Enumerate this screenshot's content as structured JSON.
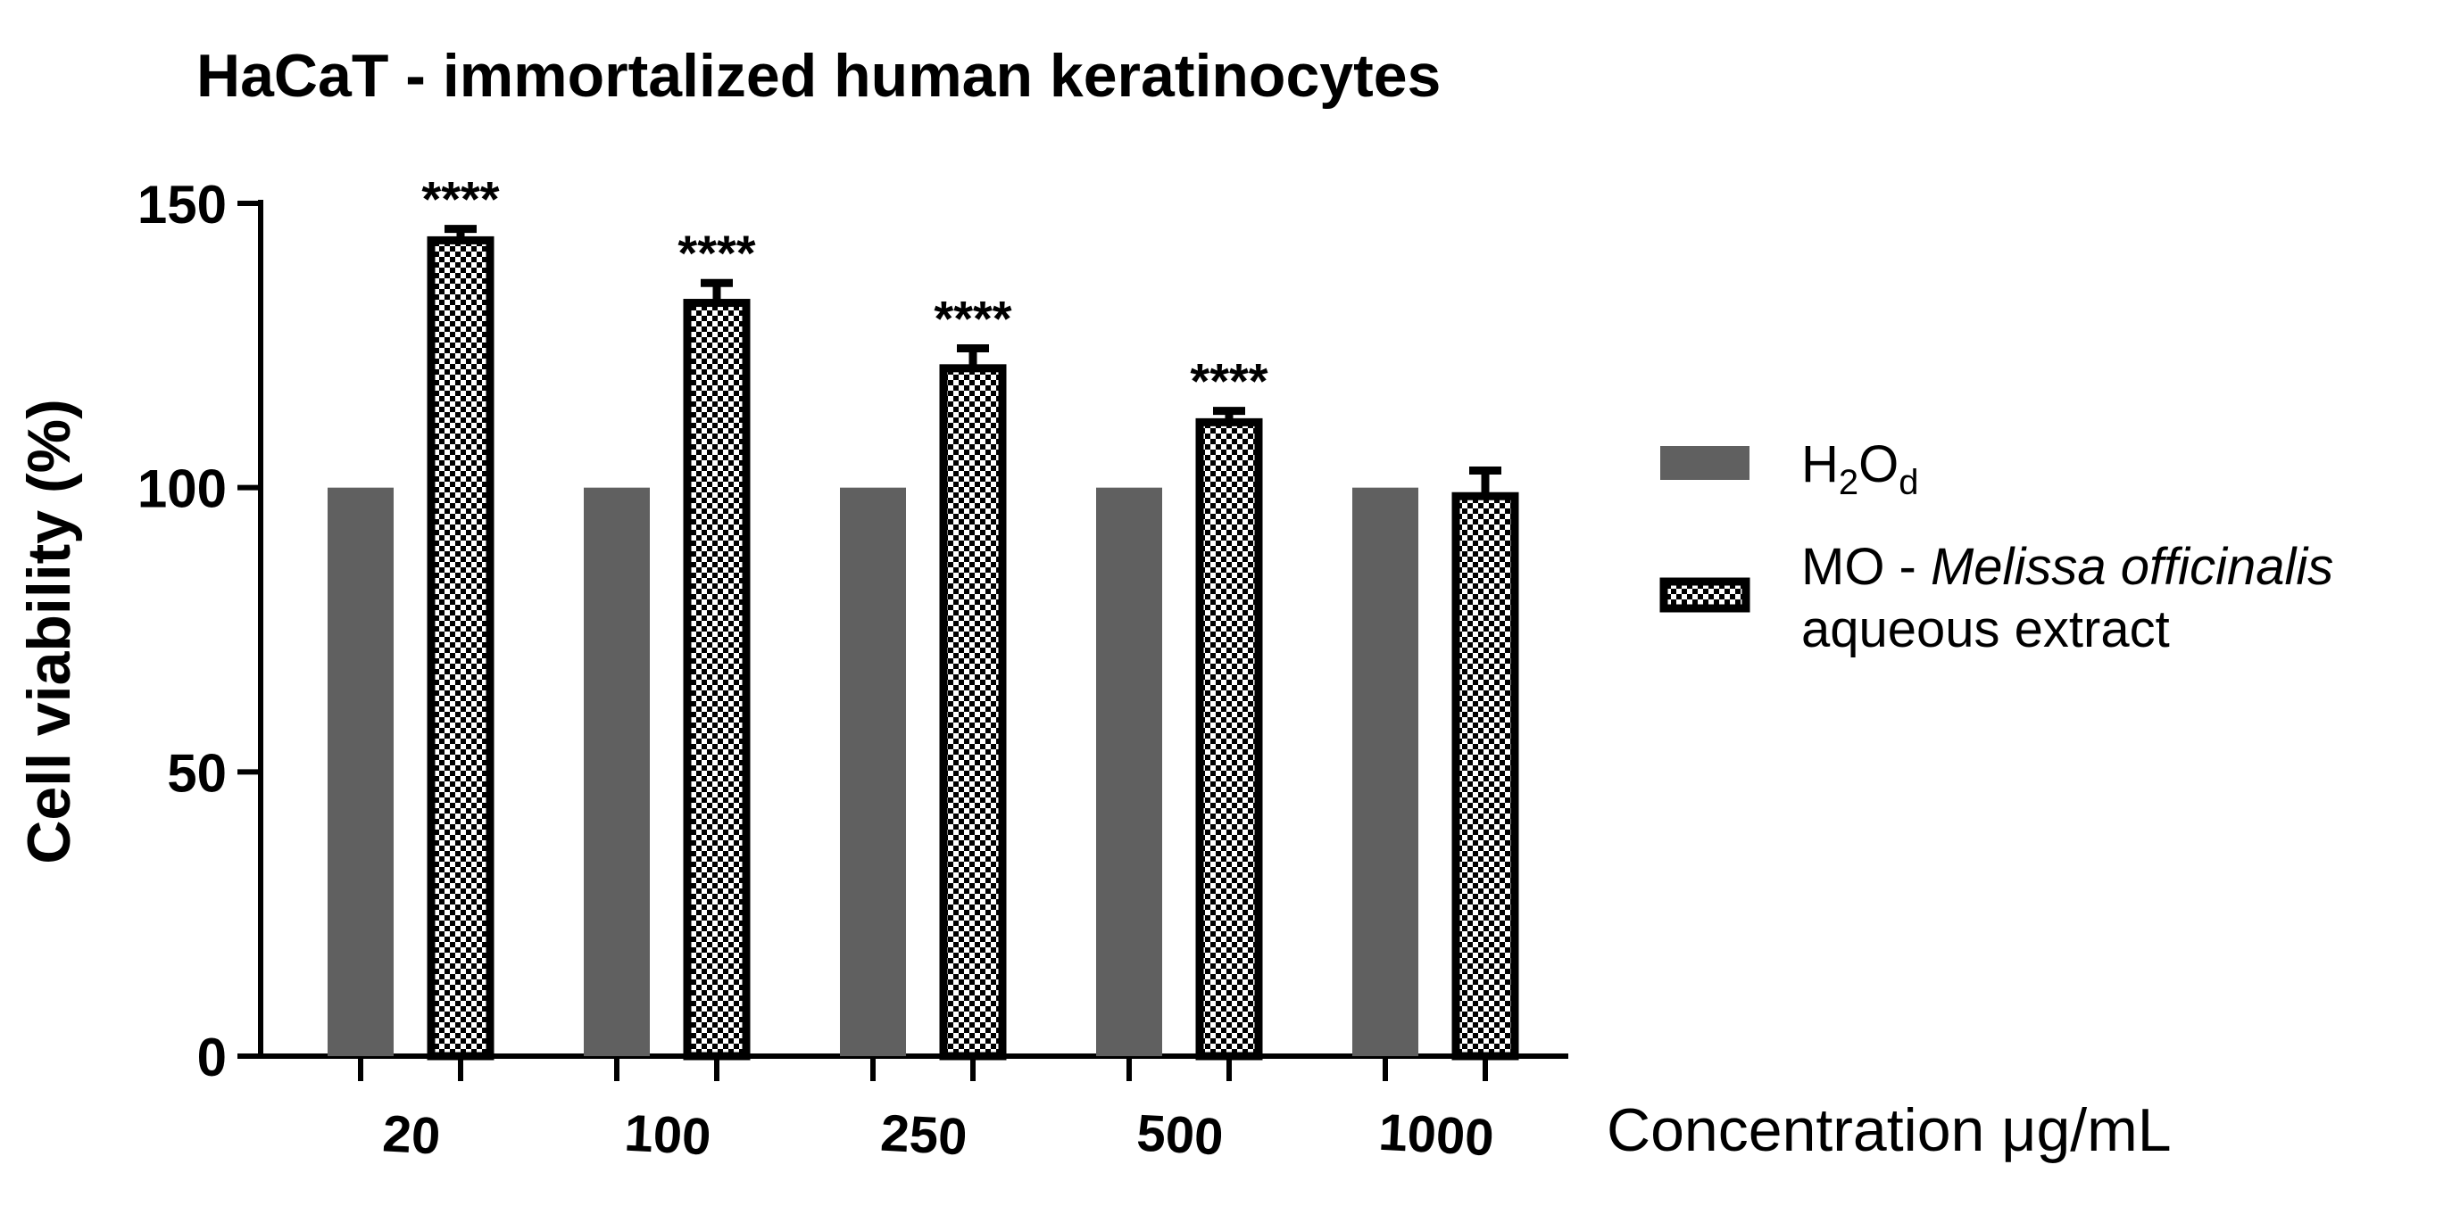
{
  "chart_data": {
    "type": "bar",
    "title": "HaCaT - immortalized human keratinocytes",
    "ylabel": "Cell viability (%)",
    "xlabel": "Concentration μg/mL",
    "ylim": [
      0,
      150
    ],
    "yticks": [
      0,
      50,
      100,
      150
    ],
    "categories": [
      "20",
      "100",
      "250",
      "500",
      "1000"
    ],
    "grid": false,
    "legend_position": "right",
    "series": [
      {
        "name": "H2Od",
        "legend_main": "H",
        "legend_sub1": "2",
        "legend_mid": "O",
        "legend_sub2": "d",
        "color": "#606060",
        "pattern": "solid",
        "values": [
          100,
          100,
          100,
          100,
          100
        ]
      },
      {
        "name": "MO - Melissa officinalis aqueous extract",
        "legend_line1_prefix": "MO - ",
        "legend_line1_italic": "Melissa officinalis",
        "legend_line2": "aqueous extract",
        "color": "#000000",
        "pattern": "checkerboard",
        "values": [
          143.5,
          132.5,
          121,
          111.5,
          98.5
        ],
        "errors": [
          2.0,
          3.5,
          3.5,
          2.0,
          4.5
        ],
        "significance": [
          "****",
          "****",
          "****",
          "****",
          ""
        ]
      }
    ]
  }
}
